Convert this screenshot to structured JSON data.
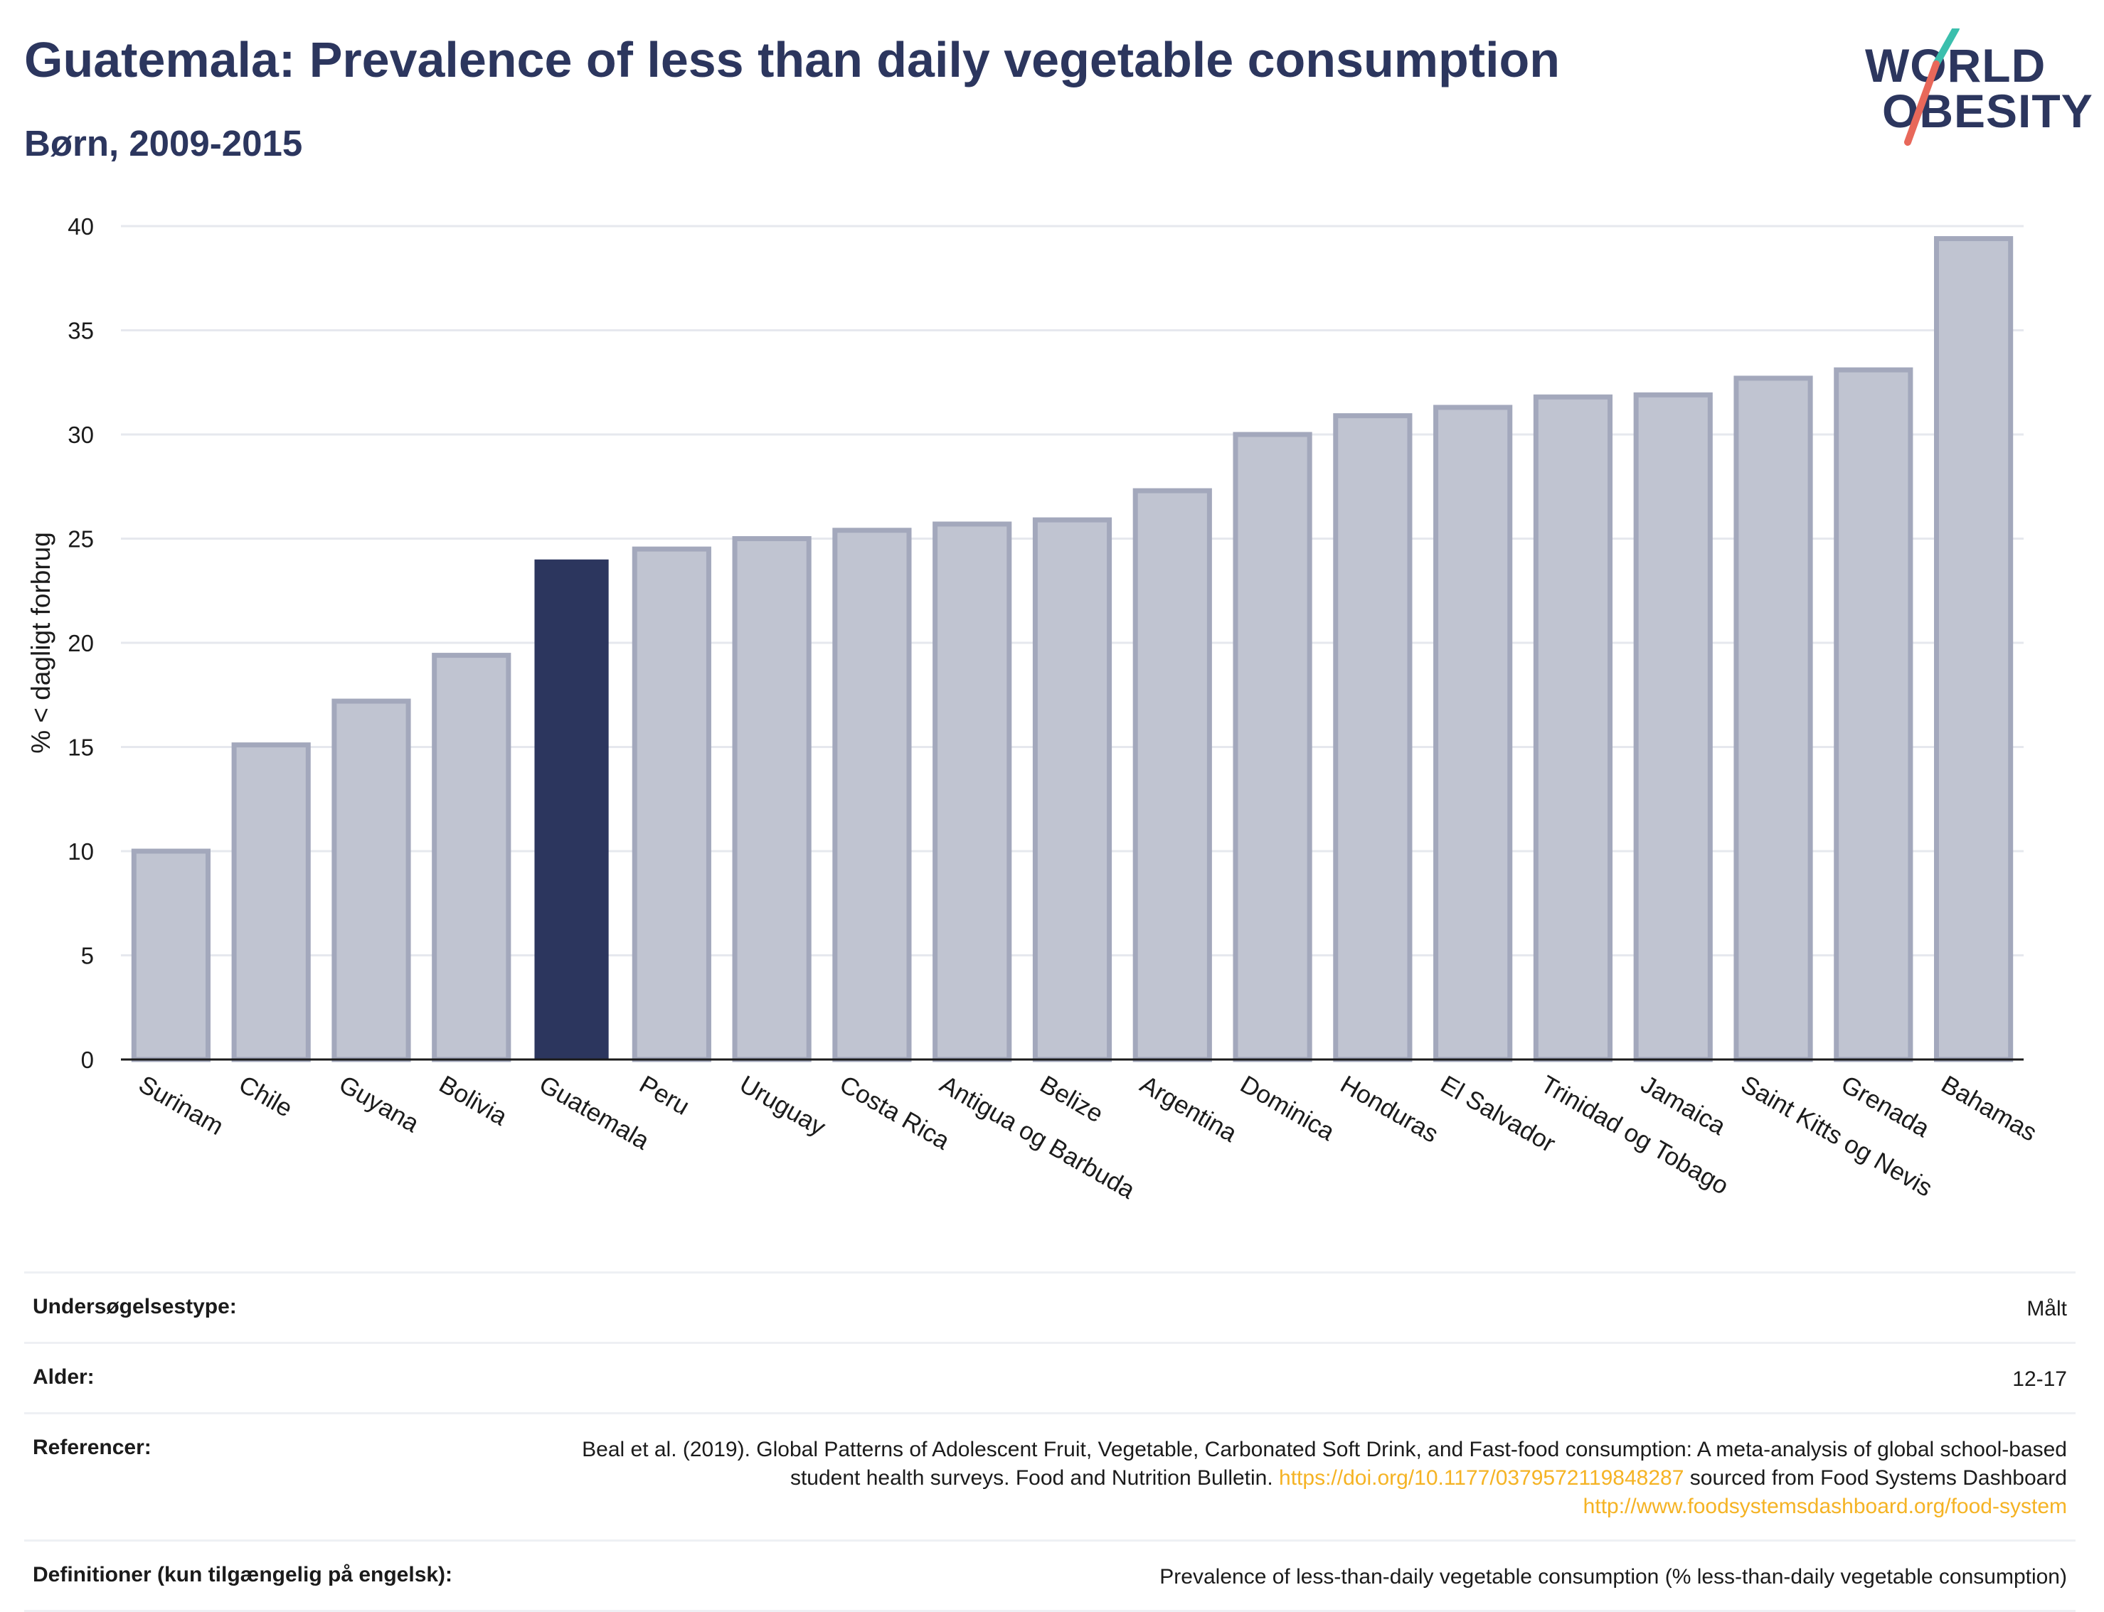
{
  "header": {
    "title": "Guatemala: Prevalence of less than daily vegetable consumption",
    "subtitle": "Børn, 2009-2015"
  },
  "logo": {
    "line1": "WORLD",
    "line2": "OBESITY",
    "accent_colors": [
      "#3bbfad",
      "#e8685a"
    ]
  },
  "chart_data": {
    "type": "bar",
    "ylabel": "% < dagligt forbrug",
    "ylim": [
      0,
      40
    ],
    "yticks": [
      0,
      5,
      10,
      15,
      20,
      25,
      30,
      35,
      40
    ],
    "grid": true,
    "categories": [
      "Surinam",
      "Chile",
      "Guyana",
      "Bolivia",
      "Guatemala",
      "Peru",
      "Uruguay",
      "Costa Rica",
      "Antigua og Barbuda",
      "Belize",
      "Argentina",
      "Dominica",
      "Honduras",
      "El Salvador",
      "Trinidad og Tobago",
      "Jamaica",
      "Saint Kitts og Nevis",
      "Grenada",
      "Bahamas"
    ],
    "values": [
      10.0,
      15.1,
      17.2,
      19.4,
      24.0,
      24.5,
      25.0,
      25.4,
      25.7,
      25.9,
      27.3,
      30.0,
      30.9,
      31.3,
      31.8,
      31.9,
      32.7,
      33.1,
      39.4
    ],
    "highlight": "Guatemala",
    "colors": {
      "highlight": "#2c365e",
      "bar_fill": "#c0c4d1",
      "bar_stroke": "#a3a8bc"
    }
  },
  "info_table": [
    {
      "key": "Undersøgelsestype:",
      "value": "Målt"
    },
    {
      "key": "Alder:",
      "value": "12-17"
    },
    {
      "key": "Referencer:",
      "value_parts": [
        {
          "text": "Beal et al. (2019). Global Patterns of Adolescent Fruit, Vegetable, Carbonated Soft Drink, and Fast-food consumption: A meta-analysis of global school-based student health surveys. Food and Nutrition Bulletin. "
        },
        {
          "text": "https://doi.org/10.1177/0379572119848287",
          "link": true
        },
        {
          "text": " sourced from Food Systems Dashboard "
        },
        {
          "text": "http://www.foodsystemsdashboard.org/food-system",
          "link": true
        }
      ]
    },
    {
      "key": "Definitioner (kun tilgængelig på engelsk):",
      "value": "Prevalence of less-than-daily vegetable consumption (% less-than-daily vegetable consumption)"
    }
  ]
}
